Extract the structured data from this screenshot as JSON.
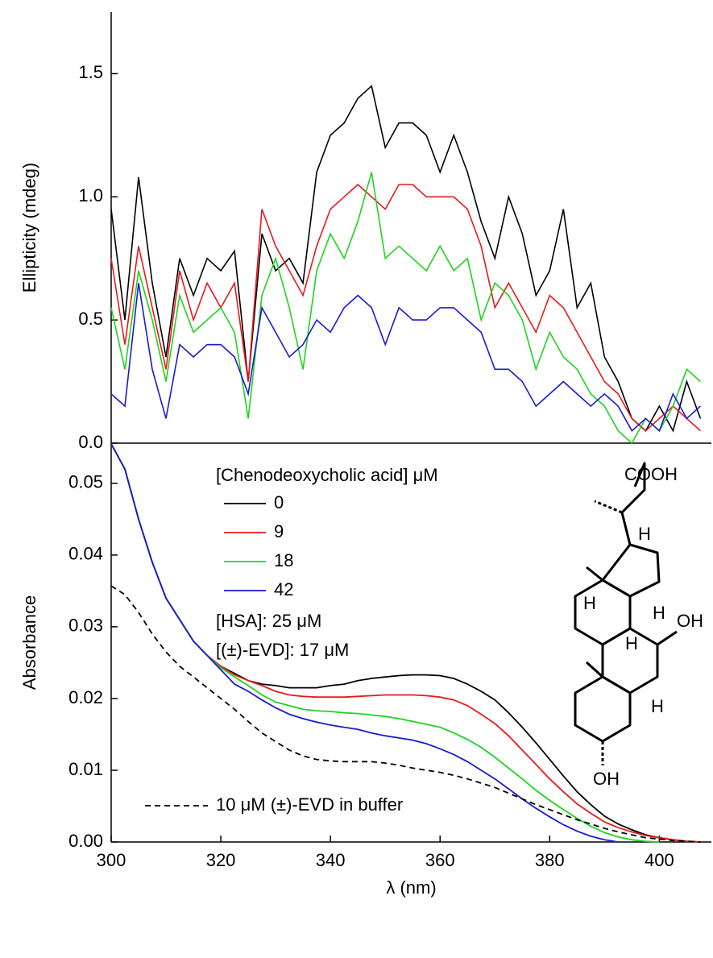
{
  "chart_data": [
    {
      "type": "line",
      "ylabel": "Ellipticity (mdeg)",
      "x": [
        300,
        302.5,
        305,
        307.5,
        310,
        312.5,
        315,
        317.5,
        320,
        322.5,
        325,
        327.5,
        330,
        332.5,
        335,
        337.5,
        340,
        342.5,
        345,
        347.5,
        350,
        352.5,
        355,
        357.5,
        360,
        362.5,
        365,
        367.5,
        370,
        372.5,
        375,
        377.5,
        380,
        382.5,
        385,
        387.5,
        390,
        392.5,
        395,
        397.5,
        400,
        402.5,
        405,
        407.5
      ],
      "xlim": [
        300,
        409.5
      ],
      "ylim": [
        0,
        1.75
      ],
      "yticks": [
        {
          "value": 0,
          "label": "0.0"
        },
        0.5,
        {
          "value": 1,
          "label": "1.0"
        },
        1.5
      ],
      "series": [
        {
          "color": "#000000",
          "values": [
            0.95,
            0.5,
            1.08,
            0.65,
            0.35,
            0.75,
            0.6,
            0.75,
            0.7,
            0.78,
            0.25,
            0.85,
            0.7,
            0.75,
            0.65,
            1.1,
            1.25,
            1.3,
            1.4,
            1.45,
            1.2,
            1.3,
            1.3,
            1.25,
            1.1,
            1.25,
            1.1,
            0.9,
            0.75,
            1.0,
            0.85,
            0.6,
            0.7,
            0.95,
            0.55,
            0.65,
            0.35,
            0.25,
            0.1,
            0.05,
            0.15,
            0.05,
            0.25,
            0.1
          ]
        },
        {
          "color": "#e8191c",
          "values": [
            0.75,
            0.4,
            0.8,
            0.55,
            0.3,
            0.7,
            0.5,
            0.65,
            0.55,
            0.65,
            0.25,
            0.95,
            0.8,
            0.7,
            0.6,
            0.8,
            0.95,
            1.0,
            1.05,
            1.0,
            0.95,
            1.05,
            1.05,
            1.0,
            1.0,
            1.0,
            0.95,
            0.8,
            0.55,
            0.65,
            0.55,
            0.45,
            0.6,
            0.55,
            0.45,
            0.35,
            0.25,
            0.2,
            0.1,
            0.05,
            0.1,
            0.15,
            0.1,
            0.05
          ]
        },
        {
          "color": "#1ed41e",
          "values": [
            0.55,
            0.3,
            0.7,
            0.5,
            0.25,
            0.6,
            0.45,
            0.5,
            0.55,
            0.45,
            0.1,
            0.6,
            0.75,
            0.55,
            0.3,
            0.7,
            0.85,
            0.75,
            0.9,
            1.1,
            0.75,
            0.8,
            0.75,
            0.7,
            0.8,
            0.7,
            0.75,
            0.5,
            0.65,
            0.6,
            0.5,
            0.3,
            0.45,
            0.35,
            0.3,
            0.2,
            0.15,
            0.05,
            0,
            0.1,
            0.05,
            0.15,
            0.3,
            0.25
          ]
        },
        {
          "color": "#1a1ad4",
          "values": [
            0.2,
            0.15,
            0.65,
            0.3,
            0.1,
            0.4,
            0.35,
            0.4,
            0.4,
            0.35,
            0.2,
            0.55,
            0.45,
            0.35,
            0.4,
            0.5,
            0.45,
            0.55,
            0.6,
            0.55,
            0.4,
            0.55,
            0.5,
            0.5,
            0.55,
            0.55,
            0.5,
            0.45,
            0.3,
            0.3,
            0.25,
            0.15,
            0.2,
            0.25,
            0.2,
            0.15,
            0.2,
            0.15,
            0.05,
            0.1,
            0.05,
            0.2,
            0.1,
            0.15
          ]
        }
      ]
    },
    {
      "type": "line",
      "xlabel": "λ (nm)",
      "ylabel": "Absorbance",
      "legend_title": "[Chenodeoxycholic acid] μM",
      "annotations": [
        "[HSA]: 25 μM",
        "[(±)-EVD]: 17 μM"
      ],
      "x": [
        300,
        302.5,
        305,
        307.5,
        310,
        312.5,
        315,
        317.5,
        320,
        322.5,
        325,
        327.5,
        330,
        332.5,
        335,
        337.5,
        340,
        342.5,
        345,
        347.5,
        350,
        352.5,
        355,
        357.5,
        360,
        362.5,
        365,
        367.5,
        370,
        372.5,
        375,
        377.5,
        380,
        382.5,
        385,
        387.5,
        390,
        392.5,
        395,
        397.5,
        400,
        402.5,
        405,
        407.5
      ],
      "xlim": [
        300,
        409.5
      ],
      "ylim": [
        0,
        0.0556
      ],
      "xticks": [
        300,
        320,
        340,
        360,
        380,
        400
      ],
      "yticks": [
        {
          "value": 0,
          "label": "0.00"
        },
        0.01,
        0.02,
        0.03,
        0.04,
        0.05
      ],
      "series": [
        {
          "name": "0",
          "color": "#000000",
          "values": [
            0.0555,
            0.052,
            0.045,
            0.039,
            0.034,
            0.031,
            0.028,
            0.026,
            0.0245,
            0.0235,
            0.0225,
            0.022,
            0.0218,
            0.0215,
            0.0215,
            0.0215,
            0.0218,
            0.022,
            0.0225,
            0.0228,
            0.023,
            0.0232,
            0.0233,
            0.0233,
            0.0232,
            0.0228,
            0.022,
            0.021,
            0.0198,
            0.018,
            0.016,
            0.0138,
            0.0115,
            0.0092,
            0.007,
            0.0052,
            0.0036,
            0.0025,
            0.0017,
            0.001,
            0.0006,
            0.0003,
            0.0001,
            0
          ]
        },
        {
          "name": "9",
          "color": "#e8191c",
          "values": [
            0.0555,
            0.052,
            0.045,
            0.039,
            0.034,
            0.031,
            0.028,
            0.026,
            0.0245,
            0.0233,
            0.0225,
            0.0218,
            0.021,
            0.0205,
            0.0203,
            0.0202,
            0.0202,
            0.0202,
            0.0203,
            0.0204,
            0.0205,
            0.0205,
            0.0205,
            0.0204,
            0.0202,
            0.0198,
            0.019,
            0.0178,
            0.0165,
            0.0148,
            0.0128,
            0.0108,
            0.0088,
            0.007,
            0.0053,
            0.004,
            0.0028,
            0.002,
            0.0014,
            0.0009,
            0.0006,
            0.0003,
            0.0001,
            0
          ]
        },
        {
          "name": "18",
          "color": "#1ed41e",
          "values": [
            0.0555,
            0.052,
            0.045,
            0.039,
            0.034,
            0.031,
            0.028,
            0.026,
            0.0243,
            0.023,
            0.0218,
            0.0205,
            0.0195,
            0.019,
            0.0185,
            0.0183,
            0.0182,
            0.018,
            0.0179,
            0.0177,
            0.0175,
            0.0172,
            0.0168,
            0.0164,
            0.016,
            0.0152,
            0.0143,
            0.0132,
            0.0118,
            0.0103,
            0.0088,
            0.0072,
            0.0058,
            0.0045,
            0.0033,
            0.0022,
            0.0013,
            0.0007,
            0.0003,
            0.0001,
            0,
            null,
            null,
            null
          ]
        },
        {
          "name": "42",
          "color": "#1a1ad4",
          "values": [
            0.0555,
            0.052,
            0.045,
            0.039,
            0.034,
            0.031,
            0.028,
            0.026,
            0.024,
            0.022,
            0.021,
            0.0198,
            0.0187,
            0.0178,
            0.0172,
            0.0167,
            0.0163,
            0.016,
            0.0157,
            0.0152,
            0.0148,
            0.0145,
            0.0142,
            0.0137,
            0.013,
            0.0122,
            0.0112,
            0.01,
            0.0088,
            0.0074,
            0.006,
            0.0047,
            0.0035,
            0.0024,
            0.0015,
            0.0008,
            0.0003,
            0,
            null,
            null,
            null,
            null,
            null,
            null
          ]
        },
        {
          "name": "10 μM (±)-EVD in buffer",
          "color": "#000000",
          "dash": true,
          "values": [
            0.0357,
            0.0345,
            0.032,
            0.029,
            0.0265,
            0.0245,
            0.023,
            0.0215,
            0.02,
            0.0185,
            0.0168,
            0.0152,
            0.014,
            0.0128,
            0.012,
            0.0115,
            0.0113,
            0.0112,
            0.0112,
            0.0112,
            0.011,
            0.0107,
            0.0103,
            0.01,
            0.0097,
            0.0093,
            0.0088,
            0.0082,
            0.0076,
            0.0068,
            0.006,
            0.0052,
            0.0045,
            0.0038,
            0.0031,
            0.0025,
            0.0019,
            0.0014,
            0.001,
            0.0006,
            0.0004,
            0.0002,
            0.0001,
            0
          ]
        }
      ]
    }
  ],
  "structure": {
    "labels": [
      "COOH",
      "H",
      "H",
      "H",
      "OH",
      "H",
      "H",
      "OH"
    ]
  }
}
